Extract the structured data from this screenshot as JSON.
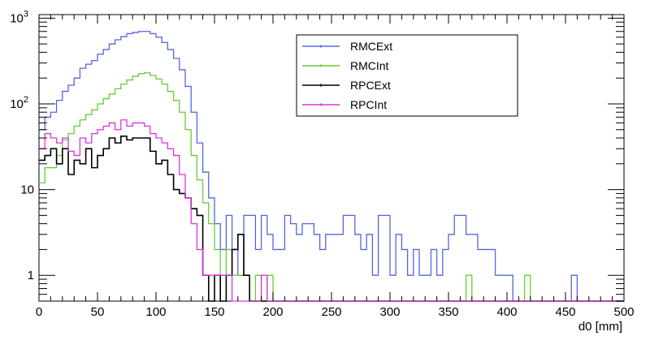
{
  "chart_data": {
    "type": "line",
    "title": "",
    "xlabel": "d0 [mm]",
    "ylabel": "",
    "xlim": [
      0,
      500
    ],
    "ylim": [
      0.5,
      1100
    ],
    "y_scale": "log",
    "grid": false,
    "legend_position": "top-center",
    "x_tick_labels": [
      "0",
      "50",
      "100",
      "150",
      "200",
      "250",
      "300",
      "350",
      "400",
      "450",
      "500"
    ],
    "y_tick_labels": [
      {
        "base": "1",
        "exp": "",
        "value": 1
      },
      {
        "base": "10",
        "exp": "",
        "value": 10
      },
      {
        "base": "10",
        "exp": "2",
        "value": 100
      },
      {
        "base": "10",
        "exp": "3",
        "value": 1000
      }
    ],
    "bin_width": 5,
    "bin_edges_start": 0,
    "series": [
      {
        "name": "RMCExt",
        "color": "#5566dd",
        "values": [
          50,
          70,
          80,
          110,
          140,
          165,
          200,
          260,
          290,
          320,
          380,
          430,
          500,
          560,
          610,
          660,
          680,
          700,
          700,
          660,
          600,
          520,
          430,
          340,
          250,
          160,
          80,
          35,
          16,
          8,
          4,
          2,
          5,
          2,
          1,
          5,
          5,
          2,
          5,
          3,
          2,
          2,
          5,
          4,
          3,
          4,
          4,
          3,
          2,
          3,
          3,
          3,
          5,
          5,
          3,
          2,
          3,
          1,
          5,
          5,
          1,
          3,
          2,
          1,
          2,
          1,
          1,
          2,
          1,
          2,
          3,
          5,
          5,
          3,
          3,
          2,
          2,
          2,
          1,
          1,
          1,
          0,
          0,
          0,
          0,
          0,
          0,
          0,
          0,
          0,
          0,
          1,
          0,
          0,
          0,
          0,
          0,
          0,
          0,
          0
        ]
      },
      {
        "name": "RMCInt",
        "color": "#66cc33",
        "values": [
          12,
          18,
          18,
          25,
          38,
          45,
          55,
          65,
          75,
          85,
          100,
          115,
          130,
          150,
          170,
          190,
          210,
          225,
          230,
          215,
          195,
          170,
          140,
          110,
          80,
          50,
          25,
          13,
          7,
          4,
          2,
          1,
          2,
          1,
          1,
          1,
          0,
          1,
          0,
          1,
          0,
          0,
          0,
          0,
          0,
          0,
          0,
          0,
          0,
          0,
          0,
          0,
          0,
          0,
          0,
          0,
          0,
          0,
          0,
          0,
          0,
          0,
          0,
          0,
          0,
          0,
          0,
          0,
          0,
          0,
          0,
          0,
          0,
          1,
          0,
          0,
          0,
          0,
          0,
          0,
          0,
          0,
          0,
          1,
          0,
          0,
          0,
          0,
          0,
          0,
          0,
          0,
          0,
          0,
          0,
          0,
          0,
          0,
          0,
          0
        ]
      },
      {
        "name": "RPCExt",
        "color": "#000000",
        "values": [
          22,
          25,
          30,
          20,
          30,
          15,
          22,
          20,
          30,
          18,
          25,
          30,
          40,
          35,
          42,
          38,
          40,
          40,
          40,
          28,
          20,
          22,
          15,
          10,
          9,
          8,
          6,
          5,
          1,
          0,
          1,
          0,
          1,
          2,
          3,
          1,
          0,
          0,
          0,
          0,
          0,
          0,
          0,
          0,
          0,
          0,
          0,
          0,
          0,
          0,
          0,
          0,
          0,
          0,
          0,
          0,
          0,
          0,
          0,
          0,
          0,
          0,
          0,
          0,
          0,
          0,
          0,
          0,
          0,
          0,
          0,
          0,
          0,
          0,
          0,
          0,
          0,
          0,
          0,
          0,
          0,
          0,
          0,
          0,
          0,
          0,
          0,
          0,
          0,
          0,
          0,
          0,
          0,
          0,
          0,
          0,
          0,
          0,
          0,
          0
        ]
      },
      {
        "name": "RPCInt",
        "color": "#dd33dd",
        "values": [
          30,
          45,
          40,
          35,
          40,
          28,
          25,
          40,
          35,
          45,
          50,
          55,
          60,
          50,
          65,
          55,
          60,
          60,
          55,
          45,
          40,
          35,
          30,
          25,
          15,
          8,
          4,
          2,
          1,
          1,
          1,
          1,
          1,
          0,
          0,
          0,
          0,
          0,
          1,
          0,
          0,
          0,
          0,
          0,
          0,
          0,
          0,
          0,
          0,
          0,
          0,
          0,
          0,
          0,
          0,
          0,
          0,
          0,
          0,
          0,
          0,
          0,
          0,
          0,
          0,
          0,
          0,
          0,
          0,
          0,
          0,
          0,
          0,
          0,
          0,
          0,
          0,
          0,
          0,
          0,
          0,
          0,
          0,
          0,
          0,
          0,
          0,
          0,
          0,
          0,
          0,
          0,
          0,
          0,
          0,
          0,
          0,
          0,
          0,
          0
        ]
      }
    ]
  }
}
